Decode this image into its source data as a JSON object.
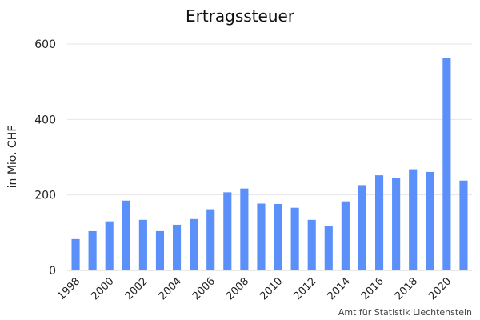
{
  "chart_data": {
    "type": "bar",
    "title": "Ertragssteuer",
    "ylabel": "in Mio. CHF",
    "xlabel": "",
    "categories": [
      "1998",
      "1999",
      "2000",
      "2001",
      "2002",
      "2003",
      "2004",
      "2005",
      "2006",
      "2007",
      "2008",
      "2009",
      "2010",
      "2011",
      "2012",
      "2013",
      "2014",
      "2015",
      "2016",
      "2017",
      "2018",
      "2019",
      "2020",
      "2021"
    ],
    "values": [
      83,
      104,
      130,
      185,
      134,
      104,
      121,
      136,
      162,
      207,
      217,
      177,
      176,
      166,
      134,
      117,
      183,
      226,
      252,
      246,
      268,
      261,
      563,
      238
    ],
    "x_tick_labels": [
      "1998",
      "2000",
      "2002",
      "2004",
      "2006",
      "2008",
      "2010",
      "2012",
      "2014",
      "2016",
      "2018",
      "2020"
    ],
    "yticks": [
      0,
      200,
      400,
      600
    ],
    "ylim": [
      0,
      600
    ],
    "grid": true,
    "legend": "none",
    "bar_color": "#5b8ff9",
    "source": "Amt für Statistik Liechtenstein"
  }
}
